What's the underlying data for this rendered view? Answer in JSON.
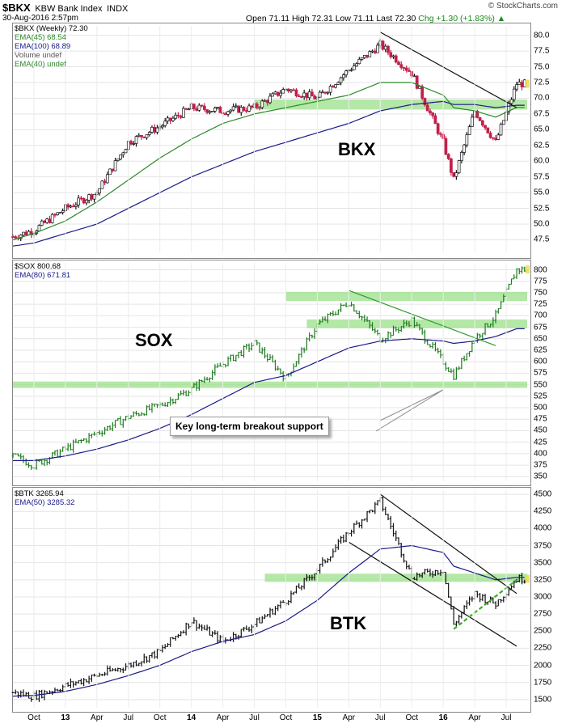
{
  "header": {
    "symbol": "$BKX",
    "name": "KBW Bank Index",
    "exchange": "INDX",
    "datetime": "30-Aug-2016 2:57pm",
    "ohlc": "Open 71.11  High 72.31  Low 71.11  Last 72.30",
    "chg": "Chg +1.30 (+1.83%)",
    "brand": "© StockCharts.com"
  },
  "panels": [
    {
      "legend": [
        "$BKX (Weekly) 72.30",
        "EMA(45) 68.54",
        "EMA(100) 68.89",
        "Volume undef",
        "EMA(40) undef"
      ],
      "legend_colors": [
        "#000000",
        "#2a8a2a",
        "#1a1a8a",
        "#555555",
        "#2a8a2a"
      ],
      "big_label": "BKX"
    },
    {
      "legend": [
        "$SOX 800.68",
        "EMA(80) 671.81"
      ],
      "legend_colors": [
        "#000000",
        "#1a1a8a"
      ],
      "big_label": "SOX",
      "callout": "Key long-term breakout support"
    },
    {
      "legend": [
        "$BTK 3265.94",
        "EMA(50) 3285.32"
      ],
      "legend_colors": [
        "#000000",
        "#1a1a8a"
      ],
      "big_label": "BTK"
    }
  ],
  "x_axis": [
    {
      "label": "Oct",
      "year": false
    },
    {
      "label": "13",
      "year": true
    },
    {
      "label": "Apr",
      "year": false
    },
    {
      "label": "Jul",
      "year": false
    },
    {
      "label": "Oct",
      "year": false
    },
    {
      "label": "14",
      "year": true
    },
    {
      "label": "Apr",
      "year": false
    },
    {
      "label": "Jul",
      "year": false
    },
    {
      "label": "Oct",
      "year": false
    },
    {
      "label": "15",
      "year": true
    },
    {
      "label": "Apr",
      "year": false
    },
    {
      "label": "Jul",
      "year": false
    },
    {
      "label": "Oct",
      "year": false
    },
    {
      "label": "16",
      "year": true
    },
    {
      "label": "Apr",
      "year": false
    },
    {
      "label": "Jul",
      "year": false
    }
  ],
  "chart_data": [
    {
      "type": "line",
      "title": "$BKX KBW Bank Index",
      "x": [
        "2012-08",
        "2012-10",
        "2013-01",
        "2013-04",
        "2013-07",
        "2013-10",
        "2014-01",
        "2014-04",
        "2014-07",
        "2014-10",
        "2015-01",
        "2015-04",
        "2015-07",
        "2015-10",
        "2016-01",
        "2016-02",
        "2016-04",
        "2016-06",
        "2016-08"
      ],
      "series": [
        {
          "name": "$BKX",
          "values": [
            48.0,
            49.0,
            52.5,
            55.0,
            63.0,
            65.5,
            68.5,
            68.0,
            68.5,
            71.5,
            70.0,
            74.5,
            78.5,
            74.0,
            63.0,
            57.0,
            68.0,
            63.0,
            72.3
          ]
        },
        {
          "name": "EMA(45)",
          "values": [
            47.5,
            48.5,
            50.5,
            53.5,
            57.0,
            60.5,
            63.5,
            66.0,
            67.5,
            68.5,
            69.5,
            70.5,
            72.5,
            72.5,
            70.5,
            68.5,
            68.0,
            67.0,
            68.54
          ]
        },
        {
          "name": "EMA(100)",
          "values": [
            46.5,
            47.0,
            48.5,
            50.0,
            52.5,
            55.0,
            57.5,
            59.5,
            61.5,
            63.0,
            64.5,
            66.0,
            68.0,
            69.0,
            69.5,
            69.0,
            69.0,
            68.5,
            68.89
          ]
        }
      ],
      "y_ticks": [
        47.5,
        50.0,
        52.5,
        55.0,
        57.5,
        60.0,
        62.5,
        65.0,
        67.5,
        70.0,
        72.5,
        75.0,
        77.5,
        80.0
      ],
      "ylim": [
        45.5,
        81.5
      ],
      "support_band": [
        68.2,
        69.8
      ],
      "trendline": [
        [
          "2015-07",
          80.5
        ],
        [
          "2016-08",
          68.5
        ]
      ]
    },
    {
      "type": "line",
      "title": "$SOX",
      "x": [
        "2012-08",
        "2012-10",
        "2013-01",
        "2013-04",
        "2013-07",
        "2013-10",
        "2014-01",
        "2014-04",
        "2014-07",
        "2014-10",
        "2015-01",
        "2015-04",
        "2015-07",
        "2015-10",
        "2016-01",
        "2016-02",
        "2016-04",
        "2016-06",
        "2016-08"
      ],
      "series": [
        {
          "name": "$SOX",
          "values": [
            395,
            375,
            410,
            445,
            480,
            505,
            540,
            595,
            640,
            565,
            680,
            730,
            650,
            690,
            600,
            570,
            650,
            700,
            800.68
          ]
        },
        {
          "name": "EMA(80)",
          "values": [
            385,
            385,
            395,
            410,
            430,
            455,
            485,
            520,
            555,
            570,
            600,
            630,
            645,
            650,
            645,
            640,
            645,
            655,
            671.81
          ]
        }
      ],
      "y_ticks": [
        350,
        375,
        400,
        425,
        450,
        475,
        500,
        525,
        550,
        575,
        600,
        625,
        650,
        675,
        700,
        725,
        750,
        775,
        800
      ],
      "ylim": [
        340,
        815
      ],
      "support_bands": [
        [
          543,
          557
        ],
        [
          732,
          752
        ],
        [
          673,
          692
        ]
      ],
      "trendline": [
        [
          "2015-04",
          755
        ],
        [
          "2016-06",
          635
        ]
      ]
    },
    {
      "type": "line",
      "title": "$BTK",
      "x": [
        "2012-08",
        "2012-10",
        "2013-01",
        "2013-04",
        "2013-07",
        "2013-10",
        "2014-01",
        "2014-04",
        "2014-07",
        "2014-10",
        "2015-01",
        "2015-04",
        "2015-07",
        "2015-10",
        "2016-01",
        "2016-02",
        "2016-04",
        "2016-06",
        "2016-08"
      ],
      "series": [
        {
          "name": "$BTK",
          "values": [
            1600,
            1550,
            1700,
            1850,
            2000,
            2200,
            2650,
            2350,
            2600,
            2950,
            3400,
            3950,
            4400,
            3300,
            3400,
            2600,
            3050,
            2900,
            3265.94
          ]
        },
        {
          "name": "EMA(50)",
          "values": [
            1550,
            1560,
            1620,
            1720,
            1850,
            2000,
            2200,
            2350,
            2450,
            2650,
            2950,
            3350,
            3700,
            3750,
            3650,
            3450,
            3350,
            3250,
            3285.32
          ]
        }
      ],
      "y_ticks": [
        1500,
        1750,
        2000,
        2250,
        2500,
        2750,
        3000,
        3250,
        3500,
        3750,
        4000,
        4250,
        4500
      ],
      "ylim": [
        1380,
        4560
      ],
      "support_band": [
        3220,
        3340
      ],
      "channel_upper": [
        [
          "2015-07",
          4500
        ],
        [
          "2016-08",
          3050
        ]
      ],
      "channel_lower": [
        [
          "2015-04",
          3800
        ],
        [
          "2016-08",
          2280
        ]
      ],
      "rising_support": [
        [
          "2016-02",
          2530
        ],
        [
          "2016-08",
          3250
        ]
      ]
    }
  ]
}
